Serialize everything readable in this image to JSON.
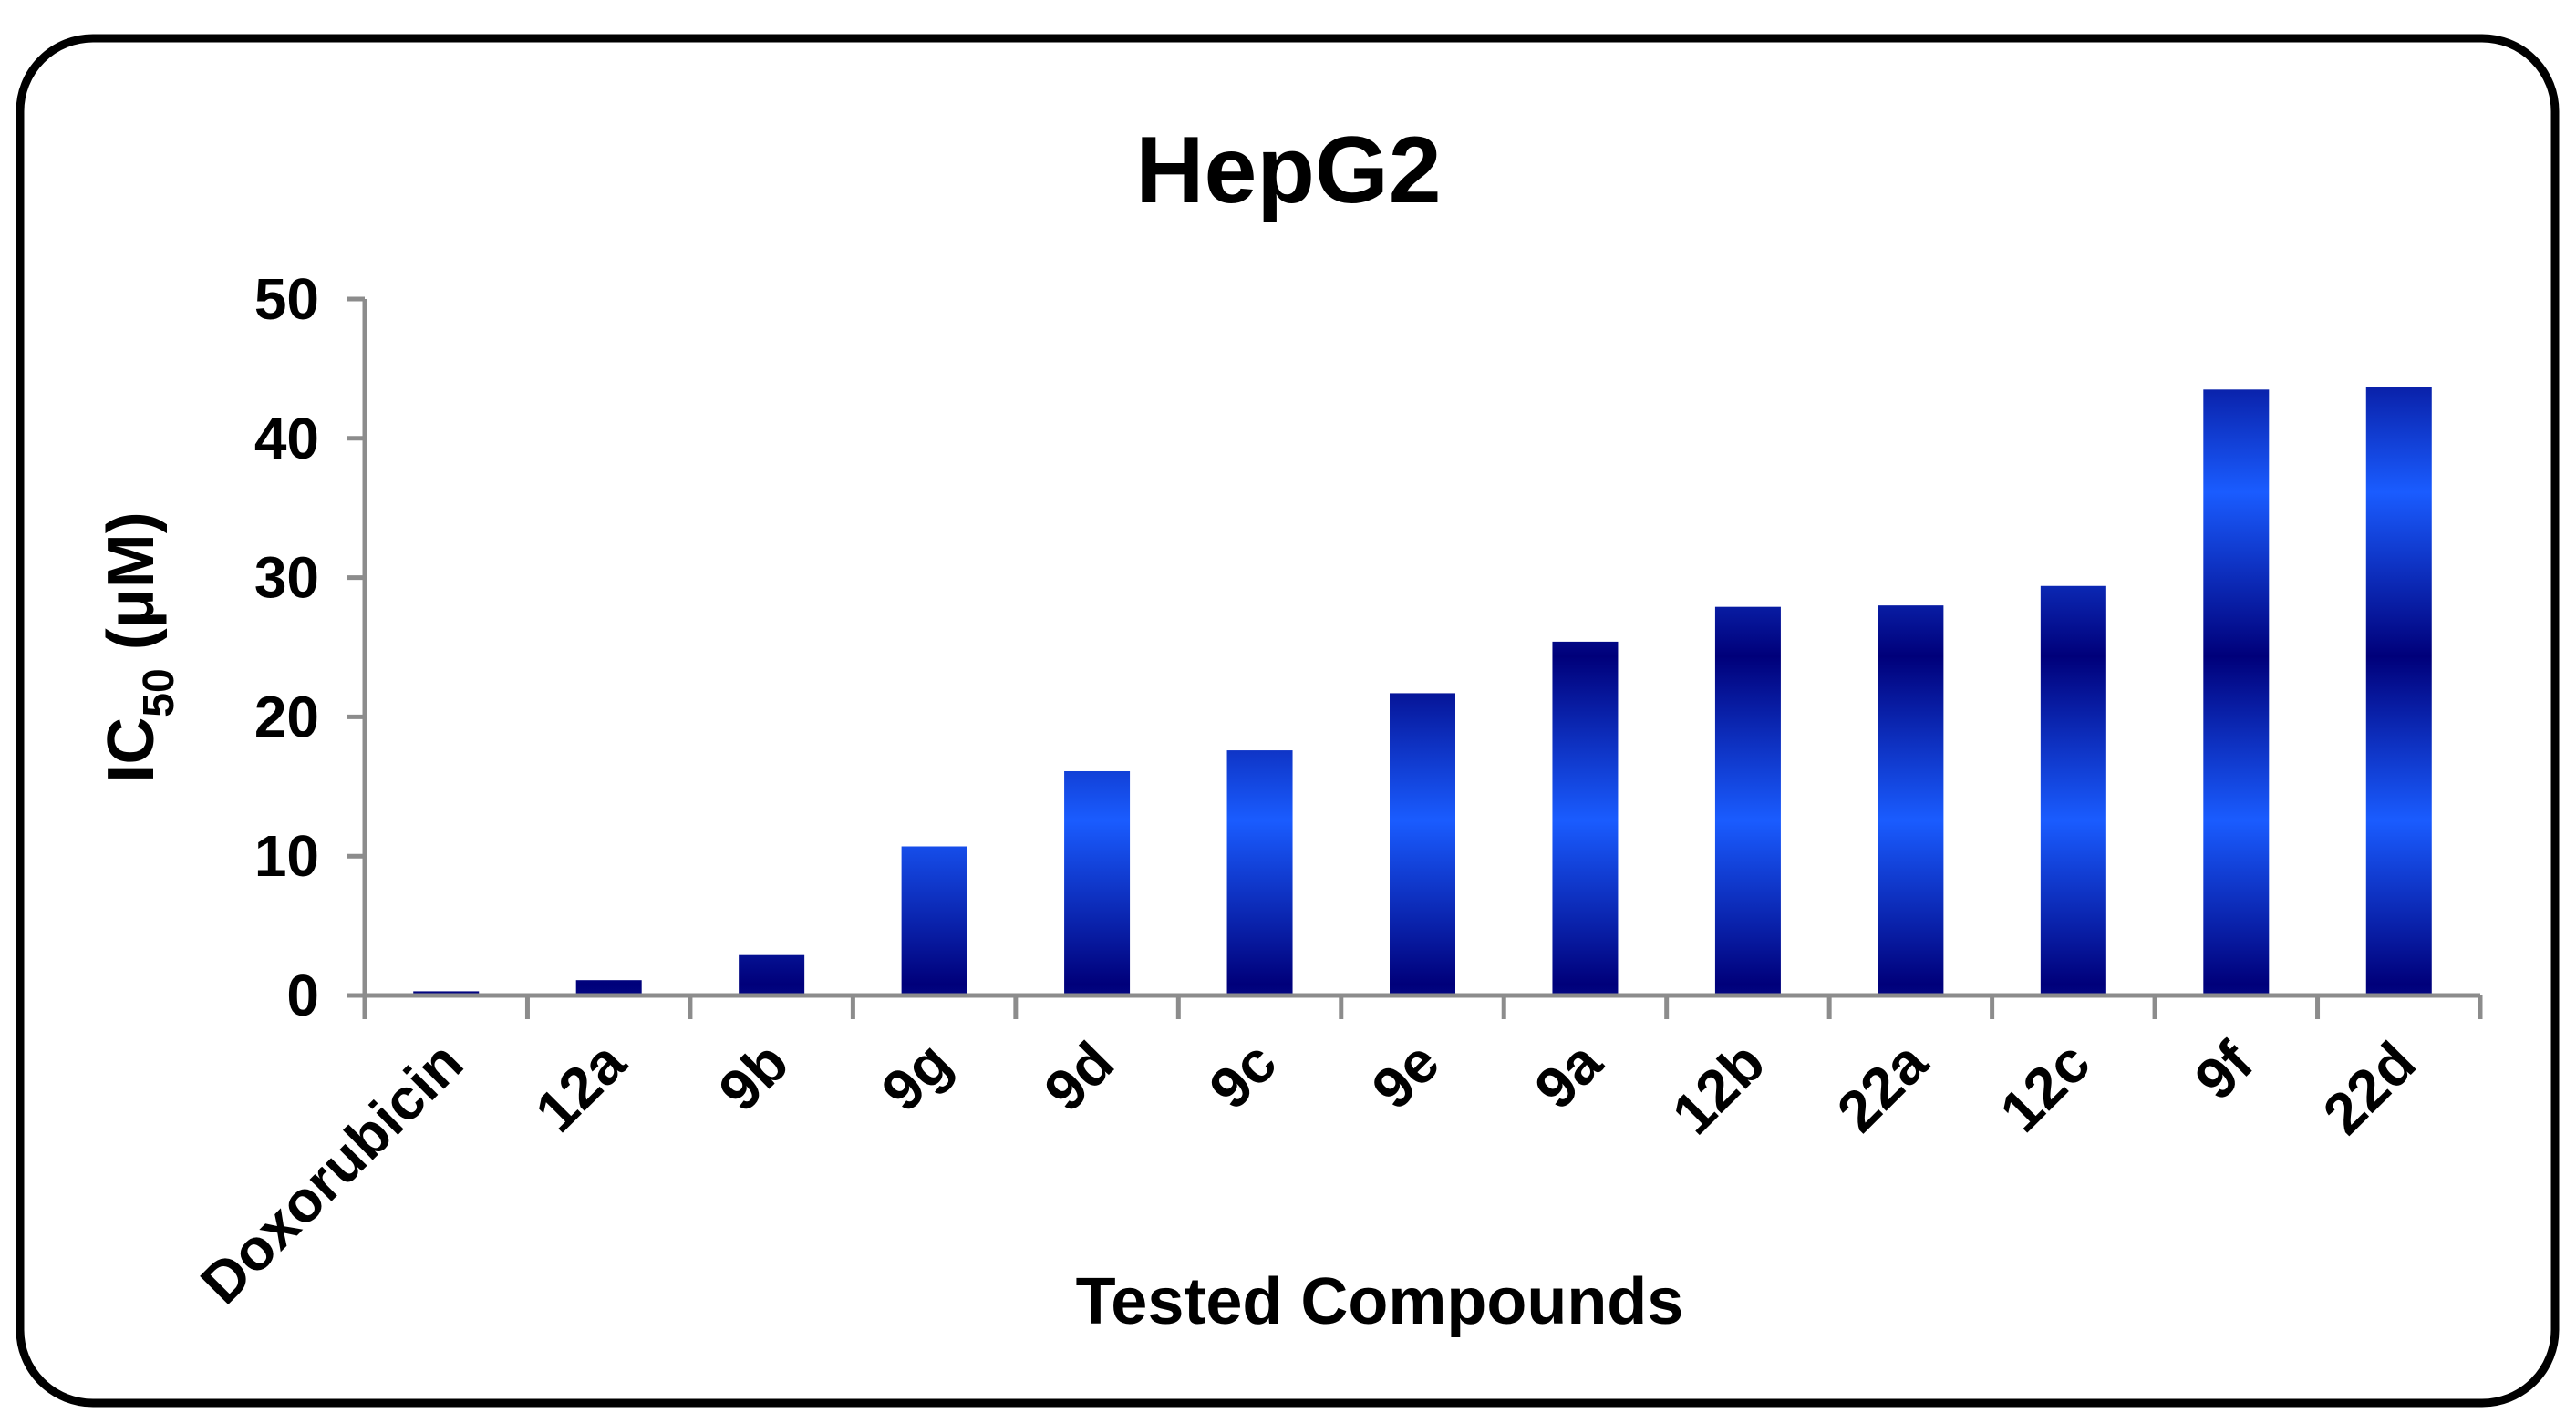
{
  "chart_data": {
    "type": "bar",
    "title": "HepG2",
    "xlabel": "Tested Compounds",
    "ylabel": {
      "prefix": "IC",
      "subscript": "50",
      "suffix": " (μM)"
    },
    "categories": [
      "Doxorubicin",
      "12a",
      "9b",
      "9g",
      "9d",
      "9c",
      "9e",
      "9a",
      "12b",
      "22a",
      "12c",
      "9f",
      "22d"
    ],
    "values": [
      0.3,
      1.1,
      2.9,
      10.7,
      16.1,
      17.6,
      21.7,
      25.4,
      27.9,
      28.0,
      29.4,
      43.5,
      43.7
    ],
    "ylim": [
      0,
      50
    ],
    "yticks": [
      0,
      10,
      20,
      30,
      40,
      50
    ],
    "grid": false,
    "legend": "none",
    "colors": {
      "bar_dark": "#00007a",
      "bar_light": "#1a5cff",
      "axis": "#8c8c8c",
      "frame": "#000000",
      "text": "#000000"
    }
  }
}
